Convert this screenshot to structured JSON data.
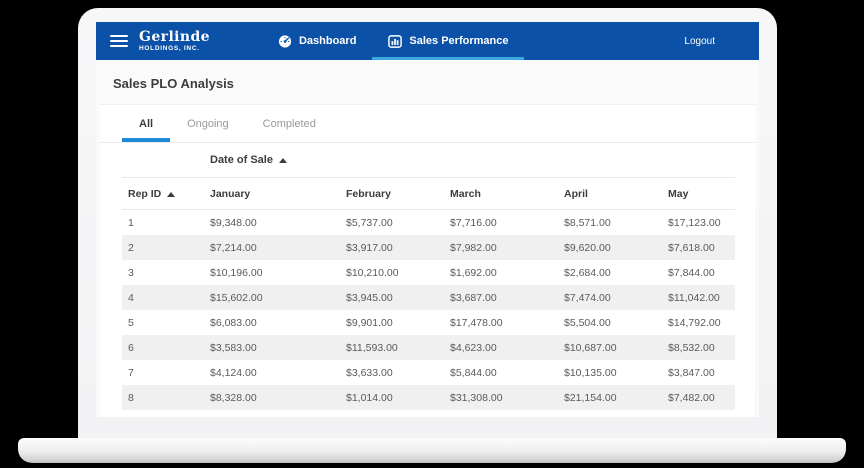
{
  "brand": {
    "name": "Gerlinde",
    "subtitle": "HOLDINGS, INC."
  },
  "nav": {
    "items": [
      {
        "label": "Dashboard",
        "icon": "gauge-icon",
        "active": false
      },
      {
        "label": "Sales Performance",
        "icon": "bar-chart-icon",
        "active": true
      }
    ],
    "logout_label": "Logout"
  },
  "page": {
    "title": "Sales PLO Analysis"
  },
  "tabs": [
    {
      "label": "All",
      "active": true
    },
    {
      "label": "Ongoing",
      "active": false
    },
    {
      "label": "Completed",
      "active": false
    }
  ],
  "table": {
    "group_header": "Date of Sale",
    "group_sort": "ascending",
    "columns": [
      "Rep ID",
      "January",
      "February",
      "March",
      "April",
      "May"
    ],
    "rep_id_sort": "ascending",
    "rows": [
      [
        "1",
        "$9,348.00",
        "$5,737.00",
        "$7,716.00",
        "$8,571.00",
        "$17,123.00"
      ],
      [
        "2",
        "$7,214.00",
        "$3,917.00",
        "$7,982.00",
        "$9,620.00",
        "$7,618.00"
      ],
      [
        "3",
        "$10,196.00",
        "$10,210.00",
        "$1,692.00",
        "$2,684.00",
        "$7,844.00"
      ],
      [
        "4",
        "$15,602.00",
        "$3,945.00",
        "$3,687.00",
        "$7,474.00",
        "$11,042.00"
      ],
      [
        "5",
        "$6,083.00",
        "$9,901.00",
        "$17,478.00",
        "$5,504.00",
        "$14,792.00"
      ],
      [
        "6",
        "$3,583.00",
        "$11,593.00",
        "$4,623.00",
        "$10,687.00",
        "$8,532.00"
      ],
      [
        "7",
        "$4,124.00",
        "$3,633.00",
        "$5,844.00",
        "$10,135.00",
        "$3,847.00"
      ],
      [
        "8",
        "$8,328.00",
        "$1,014.00",
        "$31,308.00",
        "$21,154.00",
        "$7,482.00"
      ]
    ]
  },
  "colors": {
    "navbar_blue": "#0b51a8",
    "nav_active_underline": "#3ba6e0",
    "tab_active_underline": "#1e88d9",
    "row_stripe": "#f0f0f1",
    "page_background": "#fafafa"
  }
}
